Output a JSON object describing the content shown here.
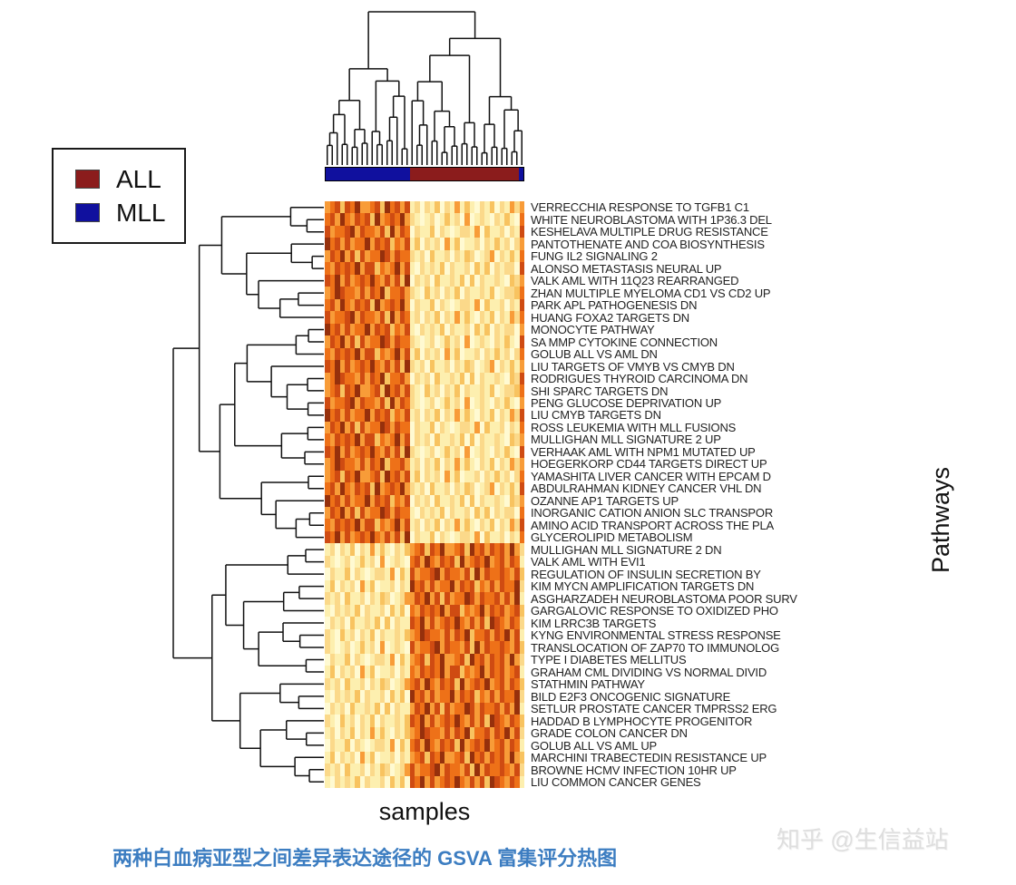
{
  "caption": "两种白血病亚型之间差异表达途径的 GSVA 富集评分热图",
  "watermark": "知乎 @生信益站",
  "axis": {
    "x_label": "samples",
    "y_label": "Pathways"
  },
  "legend": {
    "items": [
      {
        "label": "ALL",
        "color": "#8b1c1c"
      },
      {
        "label": "MLL",
        "color": "#10109e"
      }
    ]
  },
  "chart_data": {
    "type": "heatmap",
    "title": "",
    "xlabel": "samples",
    "ylabel": "Pathways",
    "legend_position": "top-left",
    "n_cols": 40,
    "col_groups": [
      {
        "name": "MLL",
        "count": 17,
        "color": "#10109e"
      },
      {
        "name": "ALL",
        "count": 22,
        "color": "#8b1c1c"
      },
      {
        "name": "MLL",
        "count": 1,
        "color": "#10109e"
      }
    ],
    "rows": [
      "VERRECCHIA RESPONSE TO TGFB1 C1",
      "WHITE NEUROBLASTOMA WITH 1P36.3 DEL",
      "KESHELAVA MULTIPLE DRUG RESISTANCE",
      "PANTOTHENATE AND COA BIOSYNTHESIS",
      "FUNG IL2 SIGNALING 2",
      "ALONSO METASTASIS NEURAL UP",
      "VALK AML WITH 11Q23 REARRANGED",
      "ZHAN MULTIPLE MYELOMA CD1 VS CD2 UP",
      "PARK APL PATHOGENESIS DN",
      "HUANG FOXA2 TARGETS DN",
      "MONOCYTE PATHWAY",
      "SA MMP CYTOKINE CONNECTION",
      "GOLUB ALL VS AML DN",
      "LIU TARGETS OF VMYB VS CMYB DN",
      "RODRIGUES THYROID CARCINOMA DN",
      "SHI SPARC TARGETS DN",
      "PENG GLUCOSE DEPRIVATION UP",
      "LIU CMYB TARGETS DN",
      "ROSS LEUKEMIA WITH MLL FUSIONS",
      "MULLIGHAN MLL SIGNATURE 2 UP",
      "VERHAAK AML WITH NPM1 MUTATED UP",
      "HOEGERKORP CD44 TARGETS DIRECT UP",
      "YAMASHITA LIVER CANCER WITH EPCAM D",
      "ABDULRAHMAN KIDNEY CANCER VHL DN",
      "OZANNE AP1 TARGETS UP",
      "INORGANIC CATION ANION SLC TRANSPOR",
      "AMINO ACID TRANSPORT ACROSS THE PLA",
      "GLYCEROLIPID METABOLISM",
      "MULLIGHAN MLL SIGNATURE 2 DN",
      "VALK AML WITH EVI1",
      "REGULATION OF INSULIN SECRETION BY",
      "KIM MYCN AMPLIFICATION TARGETS DN",
      "ASGHARZADEH NEUROBLASTOMA POOR SURV",
      "GARGALOVIC RESPONSE TO OXIDIZED PHO",
      "KIM LRRC3B TARGETS",
      "KYNG ENVIRONMENTAL STRESS RESPONSE",
      "TRANSLOCATION OF ZAP70 TO IMMUNOLOG",
      "TYPE I DIABETES MELLITUS",
      "GRAHAM CML DIVIDING VS NORMAL DIVID",
      "STATHMIN PATHWAY",
      "BILD E2F3 ONCOGENIC SIGNATURE",
      "SETLUR PROSTATE CANCER TMPRSS2 ERG",
      "HADDAD B LYMPHOCYTE PROGENITOR",
      "GRADE COLON CANCER DN",
      "GOLUB ALL VS AML UP",
      "MARCHINI TRABECTEDIN RESISTANCE UP",
      "BROWNE HCMV INFECTION 10HR UP",
      "LIU COMMON CANCER GENES"
    ],
    "palette": [
      "#FFFAD2",
      "#FDEFAF",
      "#FBD98A",
      "#F8C360",
      "#F89C38",
      "#EE7118",
      "#CF4B12",
      "#96300C"
    ],
    "matrix": [
      "4563657445637564612021302141310213021424",
      "5647546563745657421012013120401210213105",
      "6455674655463746502113021012214031120216",
      "7564645574656354613021204130112021312024",
      "4657463645576465521203112021320124021315",
      "5465657466354574610212130211203130212206",
      "6574645657546463702120311213030211210324",
      "4576554646573556421031202130211213012235",
      "5647546563745657402113021012214031120216",
      "6455674655463746512021302141310213021425",
      "7564645574656354610212130211203130212204",
      "4657463645576465521012013120401210213106",
      "5465657466354574613021204130112021312025",
      "6574645657546463721203112021320124021314",
      "4576554646573556402120311213030211210326",
      "4563657445637564621031202130211213012235",
      "6455674655463746521012013120401210213104",
      "7564645574656354612021302141310213021426",
      "4657463645576465502113021012214031120215",
      "5465657466354574602120311213030211210324",
      "6574645657546463721012013120401210213106",
      "4576554646573556412021302141310213021424",
      "4563657445637564613021204130112021312025",
      "5647546563745657421203112021320124021316",
      "7564645574656354602120311213030211210324",
      "4657463645576465510212130211203130212205",
      "5465657466354574612021302141310213021426",
      "6574645657546463702113021012214031120215",
      "1202130214131021345636574456375646564742",
      "2101201312040121056475465637456574564651",
      "0211302101221403164556746554637465565463",
      "1302120413011202175646455746563546465572",
      "2120311202132012446574636455764655646471",
      "1021213021120313054656574663545746564563",
      "0212031121303021165746456575464637654652",
      "2103120213021121345765546465735564657461",
      "2101201312040121064556746554637465565463",
      "0211302101221403145636574456375646564742",
      "1302120413011202154656574663545746564561",
      "2120311202132012456475465637456574564653",
      "1021213021120313075646455746563546465572",
      "0212031121303021146574636455764655646471",
      "2103120213021121365746456575464637654653",
      "1202130214131021345765546465735564657462",
      "0211302101221403156475465637456574564651",
      "1302120413011202145636574456375646564743",
      "2120311202132012464556746554637465565462",
      "1021213021120313065746456575464637654651"
    ],
    "dendrograms": {
      "columns": {
        "leaves": 40,
        "root_split": [
          17,
          23
        ],
        "seed": 11
      },
      "rows": {
        "leaves": 48,
        "root_split": [
          28,
          20
        ],
        "seed": 29
      }
    }
  }
}
